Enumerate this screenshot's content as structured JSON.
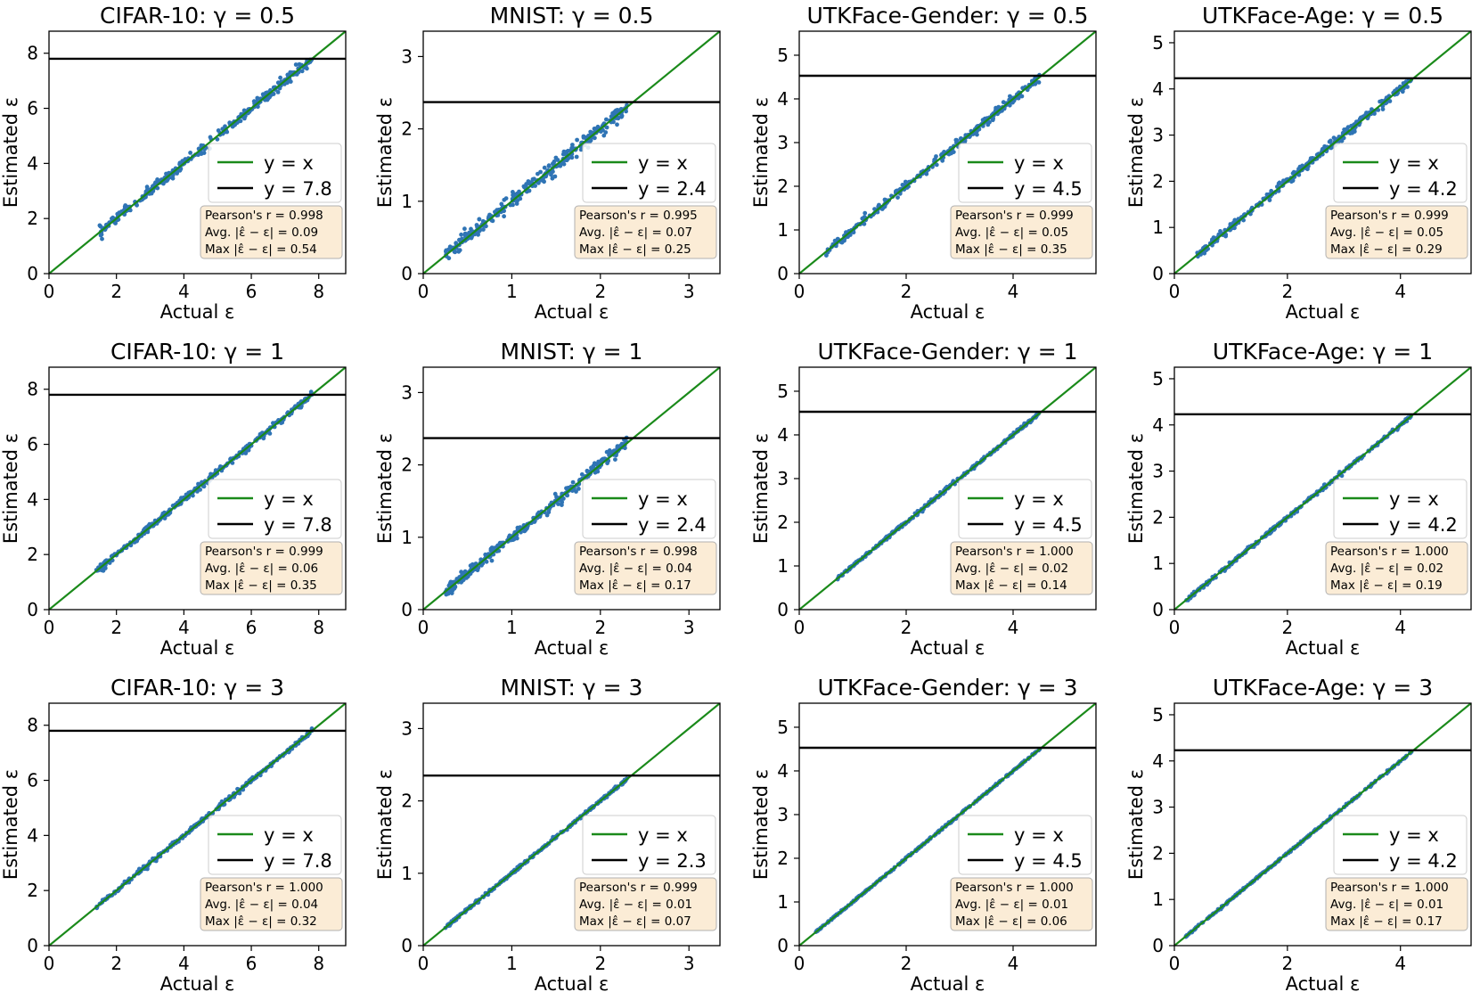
{
  "figure": {
    "xlabel": "Actual ε",
    "ylabel": "Estimated ε"
  },
  "colors": {
    "identity": "#1a8a1a",
    "threshold": "#000000",
    "points": "#2f74b5",
    "stats_bg": "#fbecd6",
    "stats_border": "#b0b0b0"
  },
  "legend": {
    "identity_label": "y = x"
  },
  "stats_labels": {
    "pearson": "Pearson's r = ",
    "avg": "Avg. |ε̂ − ε| = ",
    "max": "Max |ε̂ − ε| = "
  },
  "chart_data": [
    {
      "type": "scatter",
      "title": "CIFAR-10: γ = 0.5",
      "dataset": "CIFAR-10",
      "gamma": "0.5",
      "xlim": [
        0,
        8.8
      ],
      "ylim": [
        0,
        8.8
      ],
      "xticks": [
        0,
        2,
        4,
        6,
        8
      ],
      "yticks": [
        0,
        2,
        4,
        6,
        8
      ],
      "threshold": 7.8,
      "threshold_label": "y = 7.8",
      "points_range": [
        1.5,
        7.8
      ],
      "noise": 0.09,
      "stats": {
        "pearson": "0.998",
        "avg": "0.09",
        "max": "0.54"
      }
    },
    {
      "type": "scatter",
      "title": "MNIST: γ = 0.5",
      "dataset": "MNIST",
      "gamma": "0.5",
      "xlim": [
        0,
        3.35
      ],
      "ylim": [
        0,
        3.35
      ],
      "xticks": [
        0,
        1,
        2,
        3
      ],
      "yticks": [
        0,
        1,
        2,
        3
      ],
      "threshold": 2.37,
      "threshold_label": "y = 2.4",
      "points_range": [
        0.25,
        2.3
      ],
      "noise": 0.05,
      "stats": {
        "pearson": "0.995",
        "avg": "0.07",
        "max": "0.25"
      }
    },
    {
      "type": "scatter",
      "title": "UTKFace-Gender: γ = 0.5",
      "dataset": "UTKFace-Gender",
      "gamma": "0.5",
      "xlim": [
        0,
        5.55
      ],
      "ylim": [
        0,
        5.55
      ],
      "xticks": [
        0,
        2,
        4
      ],
      "yticks": [
        0,
        1,
        2,
        3,
        4,
        5
      ],
      "threshold": 4.53,
      "threshold_label": "y = 4.5",
      "points_range": [
        0.5,
        4.5
      ],
      "noise": 0.05,
      "stats": {
        "pearson": "0.999",
        "avg": "0.05",
        "max": "0.35"
      }
    },
    {
      "type": "scatter",
      "title": "UTKFace-Age: γ = 0.5",
      "dataset": "UTKFace-Age",
      "gamma": "0.5",
      "xlim": [
        0,
        5.25
      ],
      "ylim": [
        0,
        5.25
      ],
      "xticks": [
        0,
        2,
        4
      ],
      "yticks": [
        0,
        1,
        2,
        3,
        4,
        5
      ],
      "threshold": 4.23,
      "threshold_label": "y = 4.2",
      "points_range": [
        0.4,
        4.2
      ],
      "noise": 0.05,
      "stats": {
        "pearson": "0.999",
        "avg": "0.05",
        "max": "0.29"
      }
    },
    {
      "type": "scatter",
      "title": "CIFAR-10: γ = 1",
      "dataset": "CIFAR-10",
      "gamma": "1",
      "xlim": [
        0,
        8.8
      ],
      "ylim": [
        0,
        8.8
      ],
      "xticks": [
        0,
        2,
        4,
        6,
        8
      ],
      "yticks": [
        0,
        2,
        4,
        6,
        8
      ],
      "threshold": 7.8,
      "threshold_label": "y = 7.8",
      "points_range": [
        1.4,
        7.8
      ],
      "noise": 0.06,
      "stats": {
        "pearson": "0.999",
        "avg": "0.06",
        "max": "0.35"
      }
    },
    {
      "type": "scatter",
      "title": "MNIST: γ = 1",
      "dataset": "MNIST",
      "gamma": "1",
      "xlim": [
        0,
        3.35
      ],
      "ylim": [
        0,
        3.35
      ],
      "xticks": [
        0,
        1,
        2,
        3
      ],
      "yticks": [
        0,
        1,
        2,
        3
      ],
      "threshold": 2.37,
      "threshold_label": "y = 2.4",
      "points_range": [
        0.25,
        2.3
      ],
      "noise": 0.04,
      "stats": {
        "pearson": "0.998",
        "avg": "0.04",
        "max": "0.17"
      }
    },
    {
      "type": "scatter",
      "title": "UTKFace-Gender: γ = 1",
      "dataset": "UTKFace-Gender",
      "gamma": "1",
      "xlim": [
        0,
        5.55
      ],
      "ylim": [
        0,
        5.55
      ],
      "xticks": [
        0,
        2,
        4
      ],
      "yticks": [
        0,
        1,
        2,
        3,
        4,
        5
      ],
      "threshold": 4.53,
      "threshold_label": "y = 4.5",
      "points_range": [
        0.7,
        4.5
      ],
      "noise": 0.02,
      "stats": {
        "pearson": "1.000",
        "avg": "0.02",
        "max": "0.14"
      }
    },
    {
      "type": "scatter",
      "title": "UTKFace-Age: γ = 1",
      "dataset": "UTKFace-Age",
      "gamma": "1",
      "xlim": [
        0,
        5.25
      ],
      "ylim": [
        0,
        5.25
      ],
      "xticks": [
        0,
        2,
        4
      ],
      "yticks": [
        0,
        1,
        2,
        3,
        4,
        5
      ],
      "threshold": 4.23,
      "threshold_label": "y = 4.2",
      "points_range": [
        0.2,
        4.2
      ],
      "noise": 0.02,
      "stats": {
        "pearson": "1.000",
        "avg": "0.02",
        "max": "0.19"
      }
    },
    {
      "type": "scatter",
      "title": "CIFAR-10: γ = 3",
      "dataset": "CIFAR-10",
      "gamma": "3",
      "xlim": [
        0,
        8.8
      ],
      "ylim": [
        0,
        8.8
      ],
      "xticks": [
        0,
        2,
        4,
        6,
        8
      ],
      "yticks": [
        0,
        2,
        4,
        6,
        8
      ],
      "threshold": 7.8,
      "threshold_label": "y = 7.8",
      "points_range": [
        1.4,
        7.8
      ],
      "noise": 0.04,
      "stats": {
        "pearson": "1.000",
        "avg": "0.04",
        "max": "0.32"
      }
    },
    {
      "type": "scatter",
      "title": "MNIST: γ = 3",
      "dataset": "MNIST",
      "gamma": "3",
      "xlim": [
        0,
        3.35
      ],
      "ylim": [
        0,
        3.35
      ],
      "xticks": [
        0,
        1,
        2,
        3
      ],
      "yticks": [
        0,
        1,
        2,
        3
      ],
      "threshold": 2.35,
      "threshold_label": "y = 2.3",
      "points_range": [
        0.25,
        2.3
      ],
      "noise": 0.01,
      "stats": {
        "pearson": "0.999",
        "avg": "0.01",
        "max": "0.07"
      }
    },
    {
      "type": "scatter",
      "title": "UTKFace-Gender: γ = 3",
      "dataset": "UTKFace-Gender",
      "gamma": "3",
      "xlim": [
        0,
        5.55
      ],
      "ylim": [
        0,
        5.55
      ],
      "xticks": [
        0,
        2,
        4
      ],
      "yticks": [
        0,
        1,
        2,
        3,
        4,
        5
      ],
      "threshold": 4.53,
      "threshold_label": "y = 4.5",
      "points_range": [
        0.3,
        4.5
      ],
      "noise": 0.01,
      "stats": {
        "pearson": "1.000",
        "avg": "0.01",
        "max": "0.06"
      }
    },
    {
      "type": "scatter",
      "title": "UTKFace-Age: γ = 3",
      "dataset": "UTKFace-Age",
      "gamma": "3",
      "xlim": [
        0,
        5.25
      ],
      "ylim": [
        0,
        5.25
      ],
      "xticks": [
        0,
        2,
        4
      ],
      "yticks": [
        0,
        1,
        2,
        3,
        4,
        5
      ],
      "threshold": 4.23,
      "threshold_label": "y = 4.2",
      "points_range": [
        0.2,
        4.2
      ],
      "noise": 0.01,
      "stats": {
        "pearson": "1.000",
        "avg": "0.01",
        "max": "0.17"
      }
    }
  ]
}
